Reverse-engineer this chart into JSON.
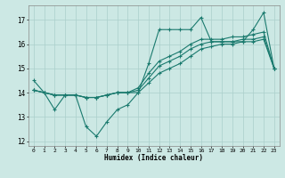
{
  "xlabel": "Humidex (Indice chaleur)",
  "bg_color": "#cce8e4",
  "line_color": "#1a7a6e",
  "grid_color": "#aacfcb",
  "xlim": [
    -0.5,
    23.5
  ],
  "ylim": [
    11.8,
    17.6
  ],
  "xticks": [
    0,
    1,
    2,
    3,
    4,
    5,
    6,
    7,
    8,
    9,
    10,
    11,
    12,
    13,
    14,
    15,
    16,
    17,
    18,
    19,
    20,
    21,
    22,
    23
  ],
  "yticks": [
    12,
    13,
    14,
    15,
    16,
    17
  ],
  "series1_x": [
    0,
    1,
    2,
    3,
    4,
    5,
    6,
    7,
    8,
    9,
    10,
    11,
    12,
    13,
    14,
    15,
    16,
    17,
    18,
    19,
    20,
    21,
    22,
    23
  ],
  "series1_y": [
    14.5,
    14.0,
    13.3,
    13.9,
    13.9,
    12.6,
    12.2,
    12.8,
    13.3,
    13.5,
    14.0,
    15.2,
    16.6,
    16.6,
    16.6,
    16.6,
    17.1,
    16.1,
    16.1,
    16.1,
    16.1,
    16.6,
    17.3,
    15.0
  ],
  "series2_x": [
    0,
    1,
    2,
    3,
    4,
    5,
    6,
    7,
    8,
    9,
    10,
    11,
    12,
    13,
    14,
    15,
    16,
    17,
    18,
    19,
    20,
    21,
    22,
    23
  ],
  "series2_y": [
    14.1,
    14.0,
    13.9,
    13.9,
    13.9,
    13.8,
    13.8,
    13.9,
    14.0,
    14.0,
    14.0,
    14.4,
    14.8,
    15.0,
    15.2,
    15.5,
    15.8,
    15.9,
    16.0,
    16.0,
    16.1,
    16.1,
    16.2,
    15.0
  ],
  "series3_x": [
    0,
    1,
    2,
    3,
    4,
    5,
    6,
    7,
    8,
    9,
    10,
    11,
    12,
    13,
    14,
    15,
    16,
    17,
    18,
    19,
    20,
    21,
    22,
    23
  ],
  "series3_y": [
    14.1,
    14.0,
    13.9,
    13.9,
    13.9,
    13.8,
    13.8,
    13.9,
    14.0,
    14.0,
    14.2,
    14.8,
    15.3,
    15.5,
    15.7,
    16.0,
    16.2,
    16.2,
    16.2,
    16.3,
    16.3,
    16.4,
    16.5,
    15.0
  ],
  "series4_x": [
    0,
    1,
    2,
    3,
    4,
    5,
    6,
    7,
    8,
    9,
    10,
    11,
    12,
    13,
    14,
    15,
    16,
    17,
    18,
    19,
    20,
    21,
    22,
    23
  ],
  "series4_y": [
    14.1,
    14.0,
    13.9,
    13.9,
    13.9,
    13.8,
    13.8,
    13.9,
    14.0,
    14.0,
    14.1,
    14.6,
    15.1,
    15.3,
    15.5,
    15.8,
    16.0,
    16.1,
    16.1,
    16.1,
    16.2,
    16.2,
    16.3,
    15.0
  ]
}
